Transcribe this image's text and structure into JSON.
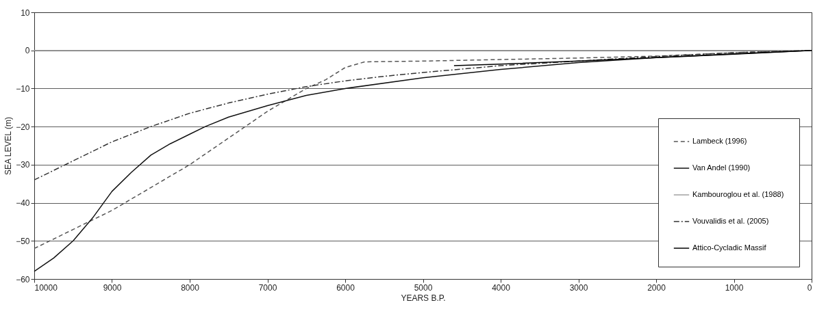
{
  "chart_data": {
    "type": "line",
    "xlabel": "YEARS B.P.",
    "ylabel": "SEA LEVEL (m)",
    "xlim": [
      10000,
      0
    ],
    "xticks": [
      10000,
      9000,
      8000,
      7000,
      6000,
      5000,
      4000,
      3000,
      2000,
      1000,
      0
    ],
    "ylim": [
      -60,
      10
    ],
    "yticks": [
      -60,
      -50,
      -40,
      -30,
      -20,
      -10,
      0,
      10
    ],
    "grid": "y",
    "legend": "bottom right",
    "marker": "none",
    "series": [
      {
        "name": "Lambeck (1996)",
        "color": "#555555",
        "line_style": "dashed",
        "x": [
          10000,
          9500,
          9000,
          8500,
          8000,
          7500,
          7000,
          6500,
          6250,
          6000,
          5750,
          5000,
          4000,
          3000,
          2000,
          1000,
          0
        ],
        "values": [
          -52,
          -47,
          -42,
          -36,
          -30,
          -23,
          -16,
          -10,
          -7.7,
          -4.5,
          -3,
          -2.8,
          -2.4,
          -2,
          -1.5,
          -0.6,
          0
        ]
      },
      {
        "name": "Van Andel (1990)",
        "color": "#111111",
        "line_style": "solid",
        "x": [
          10000,
          9750,
          9500,
          9250,
          9000,
          8750,
          8500,
          8250,
          8000,
          7800,
          7500,
          7000,
          6500,
          6000,
          5000,
          4000,
          3000,
          2000,
          1000,
          0
        ],
        "values": [
          -58,
          -54.5,
          -50,
          -44,
          -37,
          -32,
          -27.5,
          -24.5,
          -22,
          -20,
          -17.5,
          -14.5,
          -11.8,
          -10,
          -7.2,
          -5,
          -3.2,
          -1.9,
          -0.9,
          0
        ]
      },
      {
        "name": "Kambouroglou et al. (1988)",
        "color": "#a0a0a0",
        "line_style": "solid",
        "x": [
          10000,
          0
        ],
        "values": [
          0,
          0
        ]
      },
      {
        "name": "Vouvalidis et al. (2005)",
        "color": "#333333",
        "line_style": "dashdot",
        "x": [
          10000,
          9500,
          9000,
          8500,
          8000,
          7500,
          7000,
          6500,
          6000,
          5500,
          5000,
          4500,
          4000,
          3000,
          2000,
          1000,
          0
        ],
        "values": [
          -34,
          -29,
          -24,
          -20,
          -16.5,
          -13.8,
          -11.5,
          -9.5,
          -8,
          -6.8,
          -5.8,
          -4.9,
          -4,
          -2.8,
          -1.6,
          -0.6,
          0
        ]
      },
      {
        "name": "Attico-Cycladic Massif",
        "color": "#000000",
        "line_style": "solid",
        "x": [
          4600,
          4000,
          3000,
          2000,
          1000,
          0
        ],
        "values": [
          -4,
          -3.6,
          -2.8,
          -1.9,
          -1,
          0
        ]
      }
    ]
  }
}
